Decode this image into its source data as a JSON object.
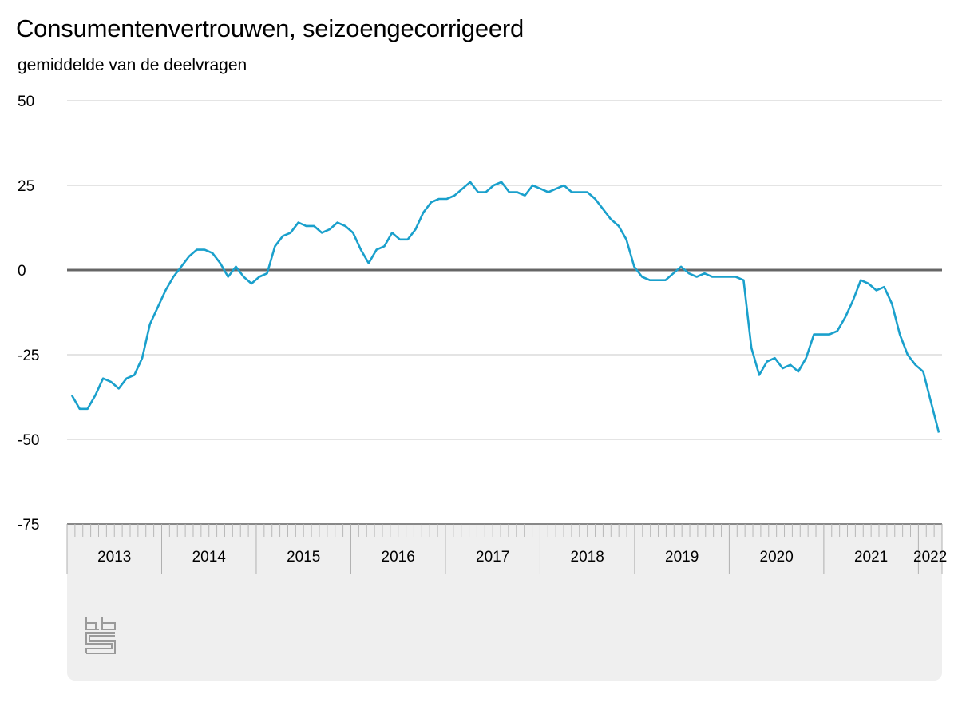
{
  "chart_data": {
    "type": "line",
    "title": "Consumentenvertrouwen, seizoengecorrigeerd",
    "subtitle": "gemiddelde van de deelvragen",
    "ylim": [
      -75,
      50
    ],
    "yticks": [
      "50",
      "25",
      "0",
      "-25",
      "-50",
      "-75"
    ],
    "ytick_values": [
      50,
      25,
      0,
      -25,
      -50,
      -75
    ],
    "x_start_year": 2013,
    "x_end_year": 2022,
    "x_end_month": 3,
    "years": [
      "2013",
      "2014",
      "2015",
      "2016",
      "2017",
      "2018",
      "2019",
      "2020",
      "2021",
      "2022"
    ],
    "grid": true,
    "series": [
      {
        "color": "#1aa0cc",
        "values": [
          -37,
          -41,
          -41,
          -37,
          -32,
          -33,
          -35,
          -32,
          -31,
          -26,
          -16,
          -11,
          -6,
          -2,
          1,
          4,
          6,
          6,
          5,
          2,
          -2,
          1,
          -2,
          -4,
          -2,
          -1,
          7,
          10,
          11,
          14,
          13,
          13,
          11,
          12,
          14,
          13,
          11,
          6,
          2,
          6,
          7,
          11,
          9,
          9,
          12,
          17,
          20,
          21,
          21,
          22,
          24,
          26,
          23,
          23,
          25,
          26,
          23,
          23,
          22,
          25,
          24,
          23,
          24,
          25,
          23,
          23,
          23,
          21,
          18,
          15,
          13,
          9,
          1,
          -2,
          -3,
          -3,
          -3,
          -1,
          1,
          -1,
          -2,
          -1,
          -2,
          -2,
          -2,
          -2,
          -3,
          -23,
          -31,
          -27,
          -26,
          -29,
          -28,
          -30,
          -26,
          -19,
          -19,
          -19,
          -18,
          -14,
          -9,
          -3,
          -4,
          -6,
          -5,
          -10,
          -19,
          -25,
          -28,
          -30,
          -39,
          -48
        ]
      }
    ],
    "zero_line_color": "#666666"
  },
  "logo": {
    "name": "cbs",
    "icon": "cbs-logo-icon"
  }
}
